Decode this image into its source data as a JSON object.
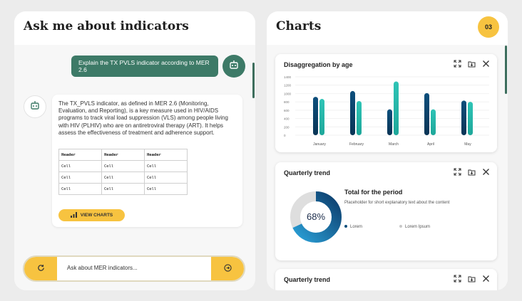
{
  "chat": {
    "title": "Ask me about indicators",
    "user_message": "Explain the TX PVLS indicator according to MER 2.6",
    "bot_message": "The TX_PVLS indicator, as defined in MER 2.6 (Monitoring, Evaluation, and Reporting), is a key measure used in HIV/AIDS programs to track viral load suppression (VLS) among people living with HIV (PLHIV) who are on antiretroviral therapy (ART). It helps assess the effectiveness of treatment and adherence support.",
    "table": {
      "headers": [
        "Header",
        "Header",
        "Header"
      ],
      "rows": [
        [
          "Cell",
          "Cell",
          "Cell"
        ],
        [
          "Cell",
          "Cell",
          "Cell"
        ],
        [
          "Cell",
          "Cell",
          "Cell"
        ]
      ]
    },
    "view_charts_label": "VIEW CHARTS",
    "input_placeholder": "Ask about MER indicators...",
    "icons": {
      "user_avatar": "robot-icon",
      "bot_avatar": "robot-icon",
      "view_charts": "bar-chart-icon",
      "left": "refresh-icon",
      "right": "send-icon"
    },
    "colors": {
      "accent": "#f7c340",
      "user_bubble": "#3d7a67"
    }
  },
  "charts": {
    "title": "Charts",
    "count": "03",
    "card_actions": [
      "expand-icon",
      "download-icon",
      "close-icon"
    ],
    "cards": [
      {
        "title": "Disaggregation by age"
      },
      {
        "title": "Quarterly trend",
        "percent_label": "68%",
        "total_title": "Total for the period",
        "description": "Placeholder for short explanatory text about the content",
        "legend": [
          "Lorem",
          "Lorem Ipsum"
        ]
      },
      {
        "title": "Quarterly trend"
      }
    ]
  },
  "chart_data": [
    {
      "type": "bar",
      "categories": [
        "January",
        "February",
        "March",
        "April",
        "May"
      ],
      "series": [
        {
          "values": [
            920,
            1060,
            620,
            1010,
            830
          ],
          "color": "#0d4f7c"
        },
        {
          "values": [
            870,
            820,
            1290,
            620,
            800
          ],
          "color": "#2ec4b6"
        }
      ],
      "title": "Disaggregation by age",
      "yticks": [
        0,
        200,
        400,
        600,
        800,
        1000,
        1200,
        1400
      ],
      "ylim": [
        0,
        1400
      ],
      "grid": true
    },
    {
      "type": "pie",
      "labels": [
        "Lorem",
        "Lorem Ipsum"
      ],
      "values": [
        68,
        32
      ],
      "colors": [
        "#0d4f7c",
        "#dedede"
      ],
      "title": "Quarterly trend"
    }
  ]
}
